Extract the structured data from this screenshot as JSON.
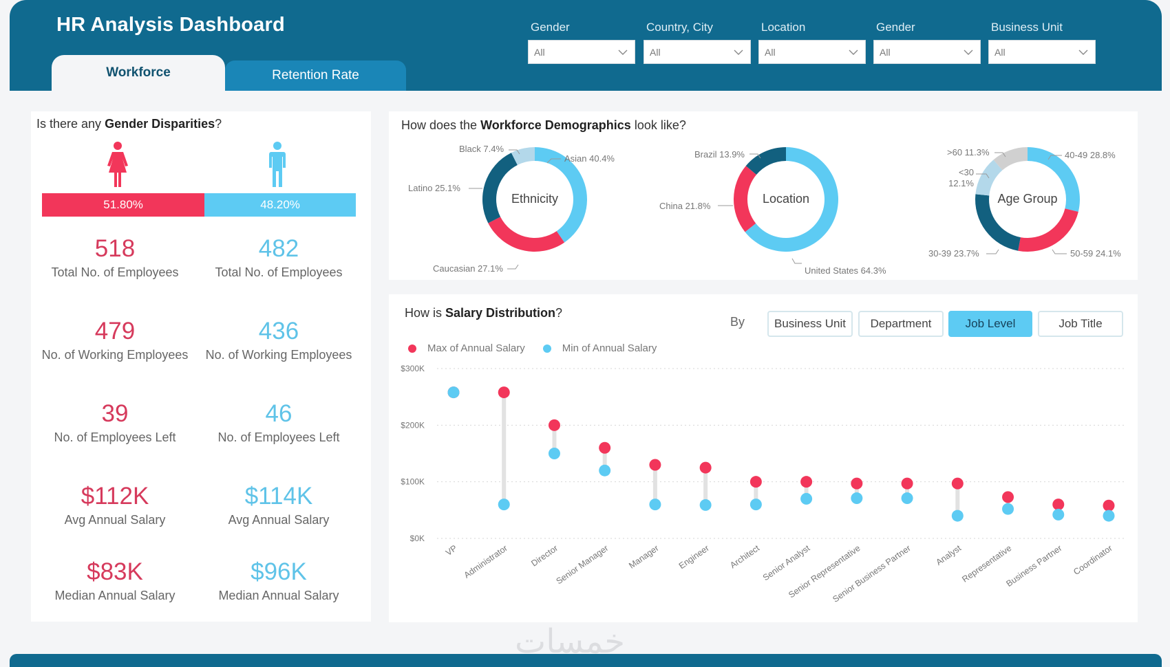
{
  "header": {
    "title": "HR Analysis Dashboard",
    "tabs": [
      {
        "label": "Workforce",
        "active": true
      },
      {
        "label": "Retention Rate",
        "active": false
      }
    ],
    "filters": [
      {
        "label": "Gender",
        "value": "All"
      },
      {
        "label": "Country, City",
        "value": "All"
      },
      {
        "label": "Location",
        "value": "All"
      },
      {
        "label": "Gender",
        "value": "All"
      },
      {
        "label": "Business Unit",
        "value": "All"
      }
    ]
  },
  "colors": {
    "header": "#106a8f",
    "female": "#f2365a",
    "male": "#5dcbf3",
    "dark_blue": "#12607f",
    "light_blue": "#b3d8ea",
    "grey": "#d0d0d0"
  },
  "gender": {
    "title_prefix": "Is there any ",
    "title_bold": "Gender Disparities",
    "title_suffix": "?",
    "female_pct": 51.8,
    "male_pct": 48.2,
    "female_pct_label": "51.80%",
    "male_pct_label": "48.20%",
    "female": [
      {
        "value": "518",
        "label": "Total No. of Employees"
      },
      {
        "value": "479",
        "label": "No. of Working Employees"
      },
      {
        "value": "39",
        "label": "No. of Employees Left"
      },
      {
        "value": "$112K",
        "label": "Avg Annual Salary"
      },
      {
        "value": "$83K",
        "label": "Median Annual Salary"
      }
    ],
    "male": [
      {
        "value": "482",
        "label": "Total No. of Employees"
      },
      {
        "value": "436",
        "label": "No. of Working Employees"
      },
      {
        "value": "46",
        "label": "No. of Employees Left"
      },
      {
        "value": "$114K",
        "label": "Avg Annual Salary"
      },
      {
        "value": "$96K",
        "label": "Median Annual Salary"
      }
    ]
  },
  "demographics": {
    "title_prefix": "How does the ",
    "title_bold": "Workforce Demographics",
    "title_suffix": " look like?"
  },
  "salary": {
    "title_prefix": "How is ",
    "title_bold": "Salary Distribution",
    "title_suffix": "?",
    "by_label": "By",
    "buttons": [
      {
        "label": "Business Unit",
        "active": false
      },
      {
        "label": "Department",
        "active": false
      },
      {
        "label": "Job Level",
        "active": true
      },
      {
        "label": "Job Title",
        "active": false
      }
    ]
  },
  "watermark": "خمسات",
  "chart_data": [
    {
      "type": "pie",
      "title": "Ethnicity",
      "donut": true,
      "slices": [
        {
          "label": "Asian",
          "value": 40.4,
          "display": "Asian 40.4%",
          "color": "#5dcbf3"
        },
        {
          "label": "Caucasian",
          "value": 27.1,
          "display": "Caucasian 27.1%",
          "color": "#f2365a"
        },
        {
          "label": "Latino",
          "value": 25.1,
          "display": "Latino 25.1%",
          "color": "#12607f"
        },
        {
          "label": "Black",
          "value": 7.4,
          "display": "Black 7.4%",
          "color": "#b3d8ea"
        }
      ]
    },
    {
      "type": "pie",
      "title": "Location",
      "donut": true,
      "slices": [
        {
          "label": "United States",
          "value": 64.3,
          "display": "United States 64.3%",
          "color": "#5dcbf3"
        },
        {
          "label": "China",
          "value": 21.8,
          "display": "China 21.8%",
          "color": "#f2365a"
        },
        {
          "label": "Brazil",
          "value": 13.9,
          "display": "Brazil 13.9%",
          "color": "#12607f"
        }
      ]
    },
    {
      "type": "pie",
      "title": "Age Group",
      "donut": true,
      "slices": [
        {
          "label": "40-49",
          "value": 28.8,
          "display": "40-49 28.8%",
          "color": "#5dcbf3"
        },
        {
          "label": "50-59",
          "value": 24.1,
          "display": "50-59 24.1%",
          "color": "#f2365a"
        },
        {
          "label": "30-39",
          "value": 23.7,
          "display": "30-39 23.7%",
          "color": "#12607f"
        },
        {
          "label": "<30",
          "value": 12.1,
          "display": "<30 12.1%",
          "color": "#b3d8ea"
        },
        {
          "label": ">60",
          "value": 11.3,
          "display": ">60 11.3%",
          "color": "#d0d0d0"
        }
      ]
    },
    {
      "type": "scatter",
      "subtype": "dumbbell",
      "title": "How is Salary Distribution?",
      "xlabel": "",
      "ylabel": "",
      "ylim": [
        0,
        300000
      ],
      "yticks": [
        0,
        100000,
        200000,
        300000
      ],
      "ytick_labels": [
        "$0K",
        "$100K",
        "$200K",
        "$300K"
      ],
      "grid": true,
      "legend": "top-left",
      "categories": [
        "VP",
        "Administrator",
        "Director",
        "Senior Manager",
        "Manager",
        "Engineer",
        "Architect",
        "Senior Analyst",
        "Senior Representative",
        "Senior Business Partner",
        "Analyst",
        "Representative",
        "Business Partner",
        "Coordinator"
      ],
      "series": [
        {
          "name": "Max of Annual Salary",
          "color": "#f2365a",
          "values": [
            258000,
            258000,
            200000,
            160000,
            130000,
            125000,
            100000,
            100000,
            97000,
            97000,
            97000,
            73000,
            60000,
            58000
          ]
        },
        {
          "name": "Min of Annual Salary",
          "color": "#5dcbf3",
          "values": [
            258000,
            60000,
            150000,
            120000,
            60000,
            59000,
            60000,
            70000,
            71000,
            71000,
            40000,
            52000,
            42000,
            40000
          ]
        }
      ]
    }
  ]
}
